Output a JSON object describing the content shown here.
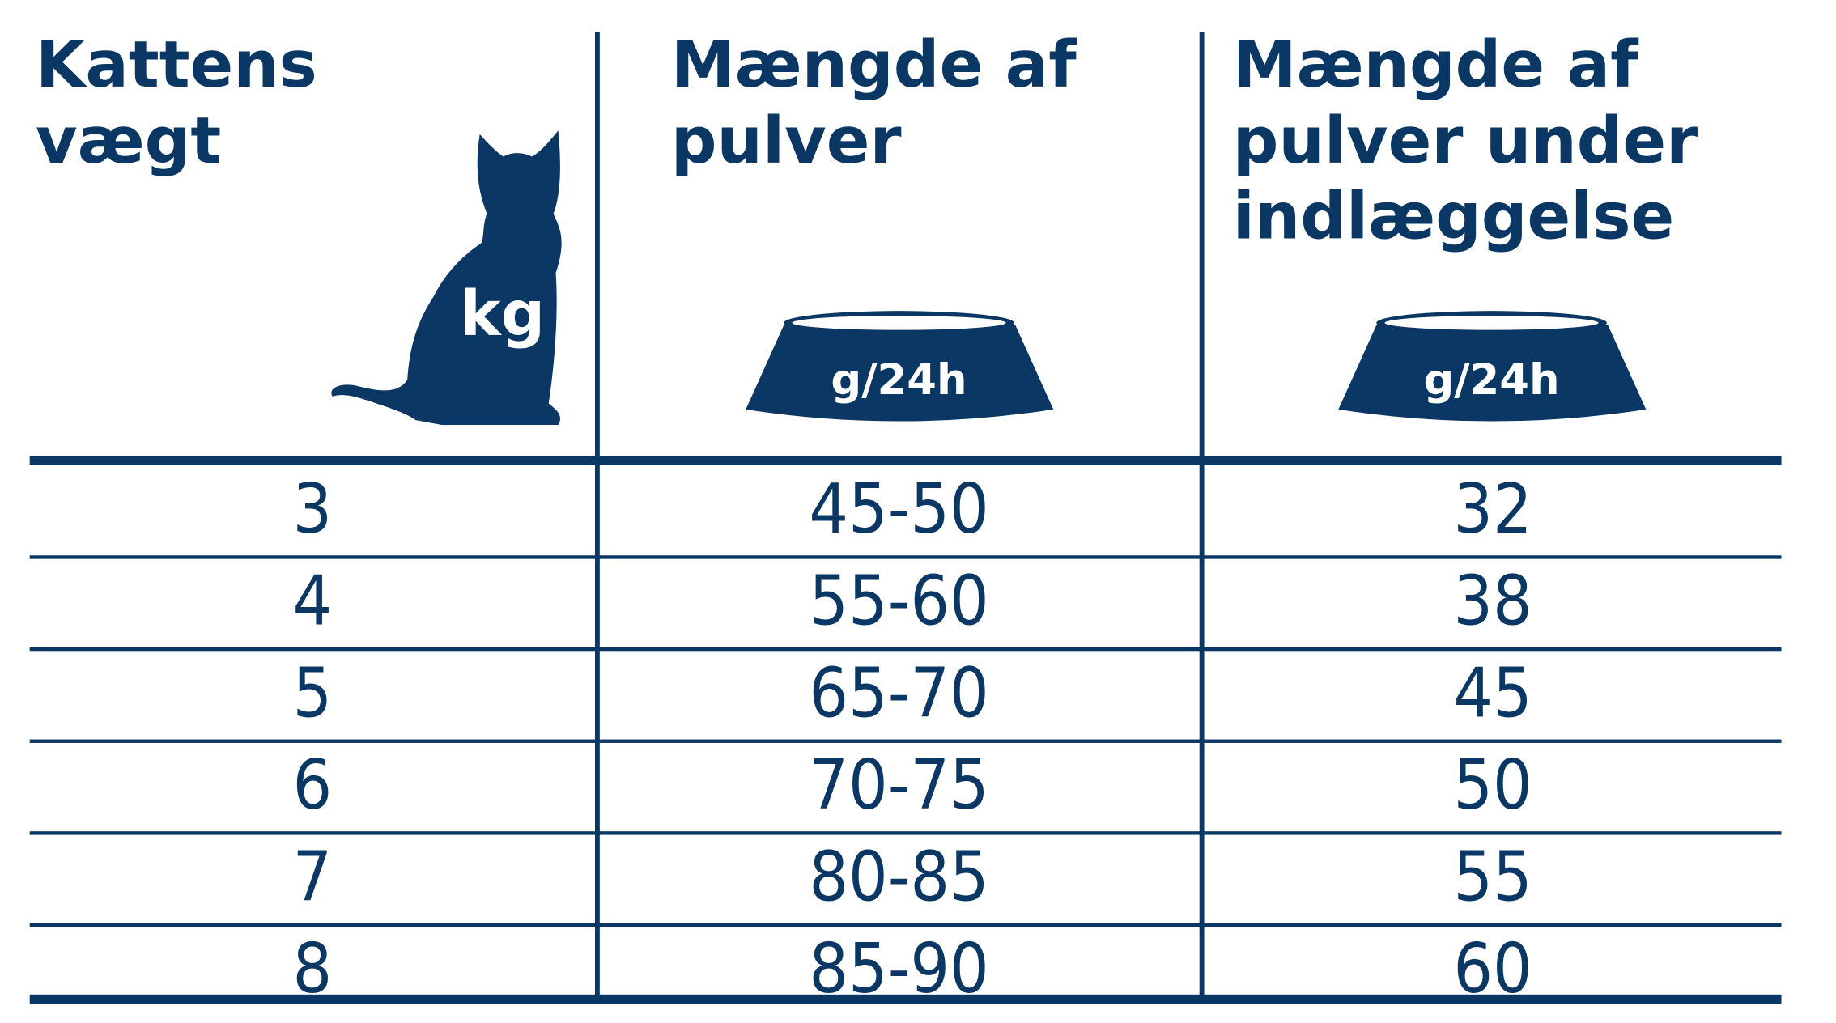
{
  "table": {
    "headers": [
      {
        "lines": [
          "Kattens",
          "vægt"
        ],
        "icon_label": "kg"
      },
      {
        "lines": [
          "Mængde af",
          "pulver"
        ],
        "icon_label": "g/24h"
      },
      {
        "lines": [
          "Mængde af",
          "pulver under",
          "indlæggelse"
        ],
        "icon_label": "g/24h"
      }
    ],
    "rows": [
      [
        3,
        "45-50",
        32
      ],
      [
        4,
        "55-60",
        38
      ],
      [
        5,
        "65-70",
        45
      ],
      [
        6,
        "70-75",
        50
      ],
      [
        7,
        "80-85",
        55
      ],
      [
        8,
        "85-90",
        60
      ]
    ]
  }
}
